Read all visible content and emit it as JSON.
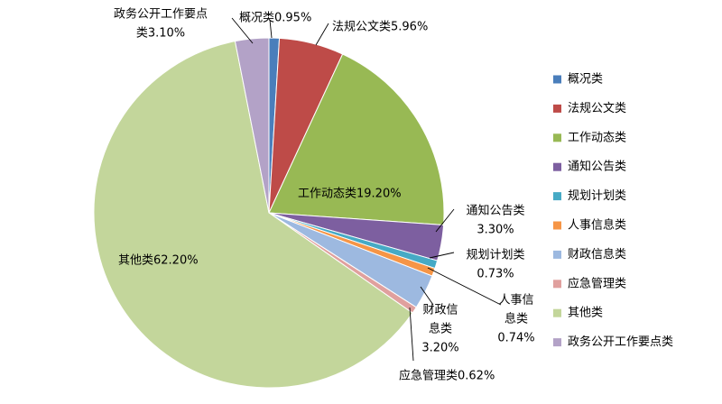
{
  "chart_data": {
    "type": "pie",
    "title": "",
    "legend_position": "right",
    "slices": [
      {
        "name": "概况类",
        "value": 0.95,
        "label": "0.95%",
        "color": "#4a7ebb"
      },
      {
        "name": "法规公文类",
        "value": 5.96,
        "label": "5.96%",
        "color": "#be4b48"
      },
      {
        "name": "工作动态类",
        "value": 19.2,
        "label": "19.20%",
        "color": "#98b954"
      },
      {
        "name": "通知公告类",
        "value": 3.3,
        "label": "3.30%",
        "color": "#7d5fa0"
      },
      {
        "name": "规划计划类",
        "value": 0.73,
        "label": "0.73%",
        "color": "#46aac5"
      },
      {
        "name": "人事信息类",
        "value": 0.74,
        "label": "0.74%",
        "color": "#f69546"
      },
      {
        "name": "财政信息类",
        "value": 3.2,
        "label": "3.20%",
        "color": "#9db9e0"
      },
      {
        "name": "应急管理类",
        "value": 0.62,
        "label": "0.62%",
        "color": "#e0a09e"
      },
      {
        "name": "其他类",
        "value": 62.2,
        "label": "62.20%",
        "color": "#c3d69b"
      },
      {
        "name": "政务公开工作要点类",
        "value": 3.1,
        "label": "3.10%",
        "color": "#b3a2c7"
      }
    ]
  },
  "data_labels": [
    {
      "lines": [
        "概况类0.95%"
      ]
    },
    {
      "lines": [
        "法规公文类5.96%"
      ]
    },
    {
      "lines": [
        "工作动态类19.20%"
      ]
    },
    {
      "lines": [
        "通知公告类",
        "3.30%"
      ]
    },
    {
      "lines": [
        "规划计划类",
        "0.73%"
      ]
    },
    {
      "lines": [
        "人事信",
        "息类",
        "0.74%"
      ]
    },
    {
      "lines": [
        "财政信",
        "息类",
        "3.20%"
      ]
    },
    {
      "lines": [
        "应急管理类0.62%"
      ]
    },
    {
      "lines": [
        "其他类62.20%"
      ]
    },
    {
      "lines": [
        "政务公开工作要点",
        "类3.10%"
      ]
    }
  ]
}
